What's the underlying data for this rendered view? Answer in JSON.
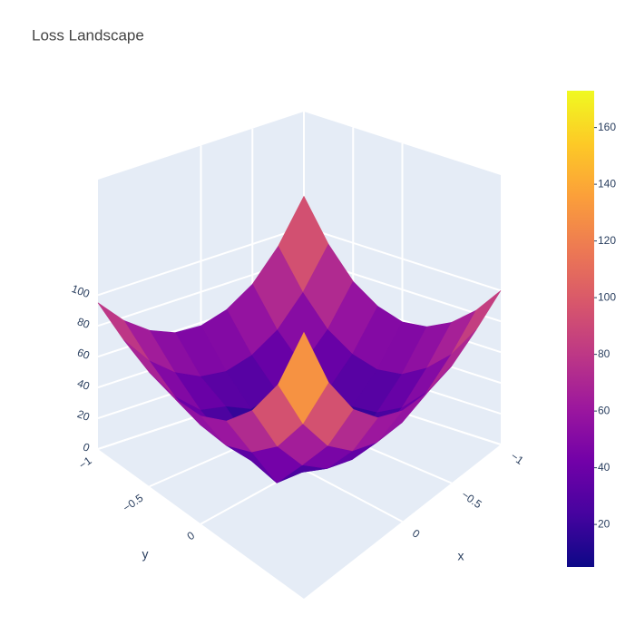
{
  "chart_data": {
    "type": "surface",
    "title": "Loss Landscape",
    "x_label": "x",
    "y_label": "y",
    "x": [
      -1,
      -0.75,
      -0.5,
      -0.25,
      0,
      0.25,
      0.5,
      0.75,
      1
    ],
    "y": [
      -1,
      -0.75,
      -0.5,
      -0.25,
      0,
      0.25,
      0.5,
      0.75,
      1
    ],
    "z": [
      [
        120,
        93,
        74,
        63,
        58,
        59,
        66,
        78,
        95
      ],
      [
        94,
        69,
        51,
        41,
        37,
        40,
        49,
        63,
        83
      ],
      [
        75,
        51,
        35,
        25,
        21,
        30,
        35,
        51,
        74
      ],
      [
        64,
        41,
        25,
        15,
        6,
        15,
        26,
        44,
        69
      ],
      [
        59,
        37,
        22,
        14,
        5,
        12,
        23,
        42,
        70
      ],
      [
        61,
        40,
        25,
        15,
        12,
        16,
        19,
        49,
        79
      ],
      [
        69,
        50,
        35,
        26,
        23,
        28,
        41,
        64,
        98
      ],
      [
        82,
        65,
        52,
        44,
        43,
        49,
        64,
        90,
        127
      ],
      [
        100,
        87,
        76,
        71,
        72,
        80,
        98,
        128,
        173
      ]
    ],
    "xlim": [
      -1,
      1
    ],
    "ylim": [
      -1,
      1
    ],
    "zlim": [
      0,
      175
    ],
    "xticks": [
      {
        "value": -1,
        "label": "−1"
      },
      {
        "value": -0.5,
        "label": "−0.5"
      },
      0
    ],
    "yticks": [
      {
        "value": -1,
        "label": "−1"
      },
      {
        "value": -0.5,
        "label": "−0.5"
      },
      0
    ],
    "zticks": [
      0,
      20,
      40,
      60,
      80,
      100
    ],
    "colorscale": "plasma",
    "clim": [
      5,
      173
    ],
    "cticks": [
      20,
      40,
      60,
      80,
      100,
      120,
      140,
      160
    ],
    "grid": true
  }
}
